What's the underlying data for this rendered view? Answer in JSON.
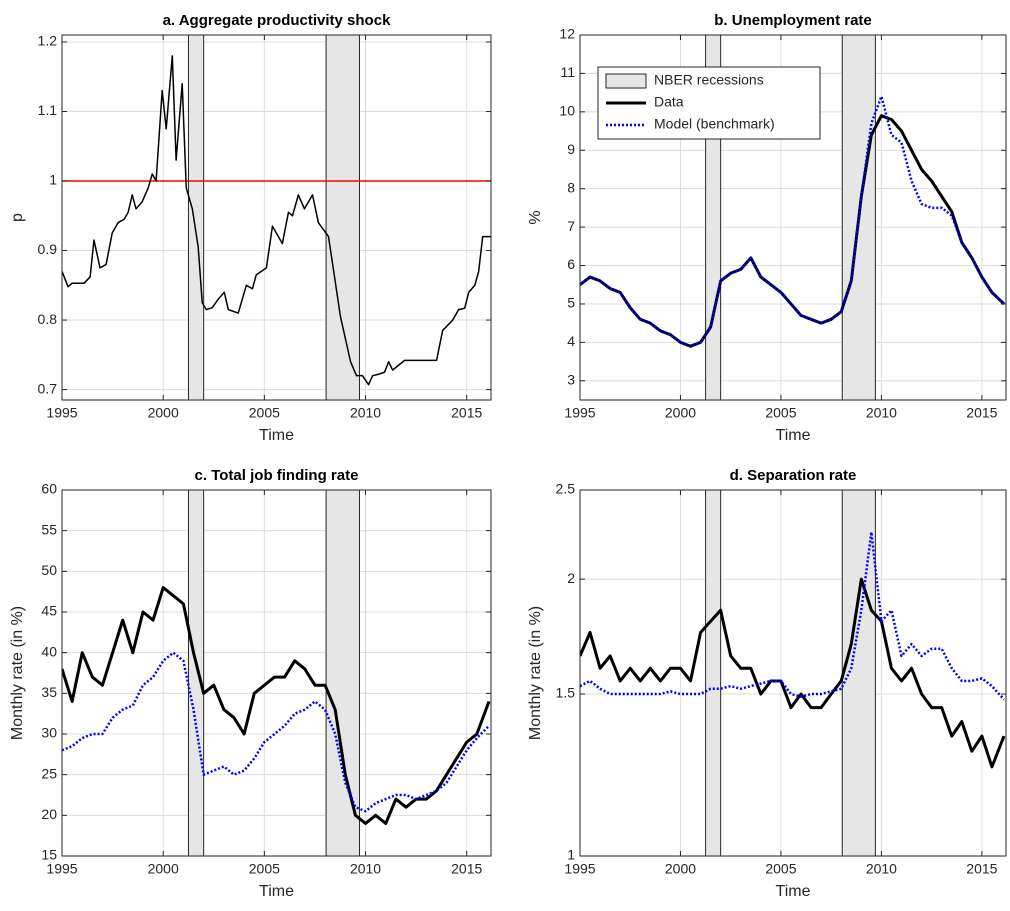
{
  "chart_data": [
    {
      "type": "line",
      "title": "a. Aggregate productivity shock",
      "xlabel": "Time",
      "ylabel": "p",
      "xlim": [
        1995,
        2016.2
      ],
      "xticks": [
        1995,
        2000,
        2005,
        2010,
        2015
      ],
      "ylim": [
        0.685,
        1.21
      ],
      "yticks": [
        0.7,
        0.8,
        0.9,
        1,
        1.1,
        1.2
      ],
      "grid": true,
      "recessions": [
        [
          2001.25,
          2002.0
        ],
        [
          2008.05,
          2009.7
        ]
      ],
      "recession_color": "#e6e6e6",
      "reference_line": 1,
      "reference_color": "#ff0000",
      "x": [
        1995.0,
        1995.3,
        1995.5,
        1996.09,
        1996.39,
        1996.58,
        1996.88,
        1997.18,
        1997.48,
        1997.77,
        1998.07,
        1998.27,
        1998.47,
        1998.66,
        1998.96,
        1999.26,
        1999.46,
        1999.65,
        1999.95,
        2000.15,
        2000.45,
        2000.64,
        2000.94,
        2001.14,
        2001.44,
        2001.73,
        2001.93,
        2002.13,
        2002.43,
        2002.72,
        2003.02,
        2003.22,
        2003.71,
        2004.11,
        2004.41,
        2004.6,
        2005.1,
        2005.4,
        2005.89,
        2006.19,
        2006.39,
        2006.68,
        2006.98,
        2007.38,
        2007.67,
        2008.17,
        2008.76,
        2009.26,
        2009.55,
        2009.85,
        2010.15,
        2010.35,
        2010.64,
        2010.94,
        2011.14,
        2011.34,
        2011.63,
        2011.93,
        2013.51,
        2013.81,
        2014.31,
        2014.6,
        2014.9,
        2015.1,
        2015.4,
        2015.59,
        2015.79,
        2016.2
      ],
      "series": [
        {
          "name": "p",
          "color": "#000000",
          "width": 1.5,
          "dash": "none",
          "values": [
            0.87,
            0.848,
            0.853,
            0.853,
            0.862,
            0.915,
            0.875,
            0.88,
            0.925,
            0.94,
            0.945,
            0.955,
            0.98,
            0.96,
            0.97,
            0.99,
            1.01,
            1.0,
            1.13,
            1.075,
            1.18,
            1.03,
            1.14,
            0.99,
            0.96,
            0.905,
            0.825,
            0.815,
            0.818,
            0.83,
            0.84,
            0.815,
            0.81,
            0.85,
            0.845,
            0.865,
            0.875,
            0.935,
            0.91,
            0.955,
            0.95,
            0.98,
            0.96,
            0.98,
            0.94,
            0.92,
            0.805,
            0.74,
            0.72,
            0.72,
            0.707,
            0.72,
            0.722,
            0.725,
            0.74,
            0.728,
            0.735,
            0.742,
            0.742,
            0.785,
            0.8,
            0.815,
            0.817,
            0.84,
            0.85,
            0.87,
            0.92,
            0.92
          ]
        }
      ]
    },
    {
      "type": "line",
      "title": "b. Unemployment rate",
      "xlabel": "Time",
      "ylabel": "%",
      "xlim": [
        1995,
        2016.2
      ],
      "xticks": [
        1995,
        2000,
        2005,
        2010,
        2015
      ],
      "ylim": [
        2.5,
        12
      ],
      "yticks": [
        3,
        4,
        5,
        6,
        7,
        8,
        9,
        10,
        11,
        12
      ],
      "grid": true,
      "recessions": [
        [
          2001.25,
          2002.0
        ],
        [
          2008.05,
          2009.7
        ]
      ],
      "recession_color": "#e6e6e6",
      "recession_label": "NBER recessions",
      "legend": "upper left",
      "x": [
        1995,
        1995.5,
        1996,
        1996.5,
        1997,
        1997.5,
        1998,
        1998.5,
        1999,
        1999.5,
        2000,
        2000.5,
        2001,
        2001.5,
        2002,
        2002.5,
        2003,
        2003.5,
        2004,
        2004.5,
        2005,
        2005.5,
        2006,
        2006.5,
        2007,
        2007.5,
        2008,
        2008.5,
        2009,
        2009.5,
        2010,
        2010.5,
        2011,
        2011.5,
        2012,
        2012.5,
        2013,
        2013.5,
        2014,
        2014.5,
        2015,
        2015.5,
        2016.1
      ],
      "series": [
        {
          "name": "Data",
          "color": "#000000",
          "width": 3,
          "dash": "none",
          "values": [
            5.5,
            5.7,
            5.6,
            5.4,
            5.3,
            4.9,
            4.6,
            4.5,
            4.3,
            4.2,
            4.0,
            3.9,
            4.0,
            4.4,
            5.6,
            5.8,
            5.9,
            6.2,
            5.7,
            5.5,
            5.3,
            5.0,
            4.7,
            4.6,
            4.5,
            4.6,
            4.8,
            5.6,
            7.8,
            9.4,
            9.9,
            9.8,
            9.5,
            9.0,
            8.5,
            8.2,
            7.8,
            7.4,
            6.6,
            6.2,
            5.7,
            5.3,
            5.0
          ]
        },
        {
          "name": "Model (benchmark)",
          "color": "#0000ff",
          "width": 2.5,
          "dash": "2 2",
          "values": [
            5.5,
            5.7,
            5.6,
            5.4,
            5.3,
            4.9,
            4.6,
            4.5,
            4.3,
            4.2,
            4.0,
            3.9,
            4.0,
            4.4,
            5.6,
            5.8,
            5.9,
            6.2,
            5.7,
            5.5,
            5.3,
            5.0,
            4.7,
            4.6,
            4.5,
            4.6,
            4.8,
            5.6,
            7.8,
            9.7,
            10.4,
            9.4,
            9.2,
            8.2,
            7.6,
            7.5,
            7.5,
            7.3,
            6.6,
            6.2,
            5.7,
            5.3,
            5.0
          ]
        }
      ]
    },
    {
      "type": "line",
      "title": "c. Total job finding rate",
      "xlabel": "Time",
      "ylabel": "Monthly rate (in %)",
      "xlim": [
        1995,
        2016.2
      ],
      "xticks": [
        1995,
        2000,
        2005,
        2010,
        2015
      ],
      "ylim": [
        15,
        60
      ],
      "yticks": [
        15,
        20,
        25,
        30,
        35,
        40,
        45,
        50,
        55,
        60
      ],
      "grid": true,
      "recessions": [
        [
          2001.25,
          2002.0
        ],
        [
          2008.05,
          2009.7
        ]
      ],
      "recession_color": "#e6e6e6",
      "x": [
        1995,
        1995.5,
        1996,
        1996.5,
        1997,
        1997.5,
        1998,
        1998.5,
        1999,
        1999.5,
        2000,
        2000.5,
        2001,
        2001.5,
        2002,
        2002.5,
        2003,
        2003.5,
        2004,
        2004.5,
        2005,
        2005.5,
        2006,
        2006.5,
        2007,
        2007.5,
        2008,
        2008.5,
        2009,
        2009.5,
        2010,
        2010.5,
        2011,
        2011.5,
        2012,
        2012.5,
        2013,
        2013.5,
        2014,
        2014.5,
        2015,
        2015.5,
        2016.1
      ],
      "series": [
        {
          "name": "Data",
          "color": "#000000",
          "width": 3,
          "dash": "none",
          "values": [
            38,
            34,
            40,
            37,
            36,
            40,
            44,
            40,
            45,
            44,
            48,
            47,
            46,
            40,
            35,
            36,
            33,
            32,
            30,
            35,
            36,
            37,
            37,
            39,
            38,
            36,
            36,
            33,
            25,
            20,
            19,
            20,
            19,
            22,
            21,
            22,
            22,
            23,
            25,
            27,
            29,
            30,
            34
          ]
        },
        {
          "name": "Model (benchmark)",
          "color": "#0000ff",
          "width": 2.5,
          "dash": "2 2",
          "values": [
            28,
            28.5,
            29.5,
            30,
            30,
            32,
            33,
            33.5,
            36,
            37,
            39,
            40,
            39,
            33,
            25,
            25.5,
            26,
            25,
            25.5,
            27,
            29,
            30,
            31,
            32.5,
            33,
            34,
            33,
            30,
            24,
            21,
            20.5,
            21.5,
            22,
            22.5,
            22.5,
            22,
            22.5,
            23,
            24,
            26,
            28,
            29.5,
            31
          ]
        }
      ]
    },
    {
      "type": "line",
      "title": "d. Separation rate",
      "xlabel": "Time",
      "ylabel": "Monthly rate (in %)",
      "xlim": [
        1995,
        2016.2
      ],
      "xticks": [
        1995,
        2000,
        2005,
        2010,
        2015
      ],
      "ylim": [
        1,
        2.5
      ],
      "yticks": [
        1,
        1.5,
        2,
        2.5
      ],
      "yscale": "log",
      "grid": true,
      "recessions": [
        [
          2001.25,
          2002.0
        ],
        [
          2008.05,
          2009.7
        ]
      ],
      "recession_color": "#e6e6e6",
      "x": [
        1995,
        1995.5,
        1996,
        1996.5,
        1997,
        1997.5,
        1998,
        1998.5,
        1999,
        1999.5,
        2000,
        2000.5,
        2001,
        2001.5,
        2002,
        2002.5,
        2003,
        2003.5,
        2004,
        2004.5,
        2005,
        2005.5,
        2006,
        2006.5,
        2007,
        2007.5,
        2008,
        2008.5,
        2009,
        2009.5,
        2010,
        2010.5,
        2011,
        2011.5,
        2012,
        2012.5,
        2013,
        2013.5,
        2014,
        2014.5,
        2015,
        2015.5,
        2016.1
      ],
      "series": [
        {
          "name": "Data",
          "color": "#000000",
          "width": 3,
          "dash": "none",
          "values": [
            1.65,
            1.75,
            1.6,
            1.65,
            1.55,
            1.6,
            1.55,
            1.6,
            1.55,
            1.6,
            1.6,
            1.55,
            1.75,
            1.8,
            1.85,
            1.65,
            1.6,
            1.6,
            1.5,
            1.55,
            1.55,
            1.45,
            1.5,
            1.45,
            1.45,
            1.5,
            1.55,
            1.7,
            2.0,
            1.85,
            1.8,
            1.6,
            1.55,
            1.6,
            1.5,
            1.45,
            1.45,
            1.35,
            1.4,
            1.3,
            1.35,
            1.25,
            1.35
          ]
        },
        {
          "name": "Model (benchmark)",
          "color": "#0000ff",
          "width": 2.5,
          "dash": "2 2",
          "values": [
            1.53,
            1.55,
            1.52,
            1.5,
            1.5,
            1.5,
            1.5,
            1.5,
            1.5,
            1.51,
            1.5,
            1.5,
            1.5,
            1.52,
            1.52,
            1.53,
            1.52,
            1.53,
            1.54,
            1.55,
            1.55,
            1.5,
            1.49,
            1.5,
            1.5,
            1.51,
            1.52,
            1.6,
            1.85,
            2.25,
            1.8,
            1.85,
            1.65,
            1.7,
            1.65,
            1.68,
            1.68,
            1.6,
            1.55,
            1.55,
            1.56,
            1.53,
            1.48
          ]
        }
      ]
    }
  ]
}
